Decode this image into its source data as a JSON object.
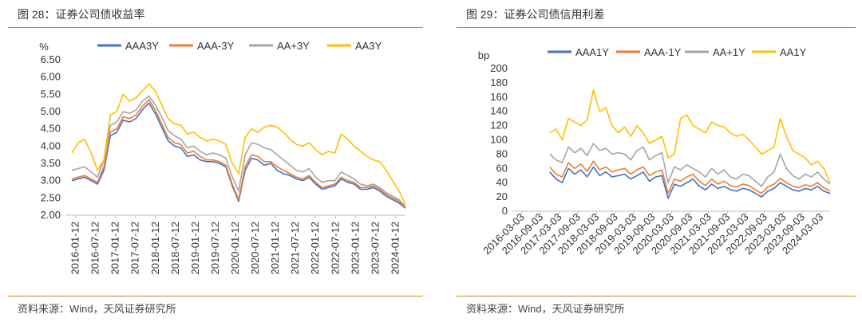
{
  "left": {
    "figure_title": "图 28：证券公司债收益率",
    "source": "资料来源：Wind，天风证券研究所",
    "colors": {
      "rule": "#d9822b"
    }
  },
  "right": {
    "figure_title": "图 29：证券公司债信用利差",
    "source": "资料来源：Wind，天风证券研究所",
    "colors": {
      "rule": "#d9822b"
    }
  },
  "chart_data": [
    {
      "type": "line",
      "title": "图 28：证券公司债收益率",
      "ylabel": "%",
      "ylim": [
        2.0,
        6.5
      ],
      "yticks": [
        2.0,
        2.5,
        3.0,
        3.5,
        4.0,
        4.5,
        5.0,
        5.5,
        6.0,
        6.5
      ],
      "ytick_labels": [
        "2.00",
        "2.50",
        "3.00",
        "3.50",
        "4.00",
        "4.50",
        "5.00",
        "5.50",
        "6.00",
        "6.50"
      ],
      "xtick_labels": [
        "2016-01-12",
        "2016-07-12",
        "2017-01-12",
        "2017-07-12",
        "2018-01-12",
        "2018-07-12",
        "2019-01-12",
        "2019-07-12",
        "2020-01-12",
        "2020-07-12",
        "2021-01-12",
        "2021-07-12",
        "2022-01-12",
        "2022-07-12",
        "2023-01-12",
        "2023-07-12",
        "2024-01-12"
      ],
      "legend_position": "top",
      "x": [
        "2016-01",
        "2016-03",
        "2016-05",
        "2016-07",
        "2016-09",
        "2016-11",
        "2017-01",
        "2017-03",
        "2017-05",
        "2017-07",
        "2017-09",
        "2017-11",
        "2018-01",
        "2018-03",
        "2018-05",
        "2018-07",
        "2018-09",
        "2018-11",
        "2019-01",
        "2019-03",
        "2019-05",
        "2019-07",
        "2019-09",
        "2019-11",
        "2020-01",
        "2020-03",
        "2020-05",
        "2020-07",
        "2020-09",
        "2020-11",
        "2021-01",
        "2021-03",
        "2021-05",
        "2021-07",
        "2021-09",
        "2021-11",
        "2022-01",
        "2022-03",
        "2022-05",
        "2022-07",
        "2022-09",
        "2022-11",
        "2023-01",
        "2023-03",
        "2023-05",
        "2023-07",
        "2023-09",
        "2023-11",
        "2024-01",
        "2024-03",
        "2024-05",
        "2024-07",
        "2024-09"
      ],
      "series": [
        {
          "name": "AAA3Y",
          "color": "#4472c4",
          "values": [
            3.0,
            3.05,
            3.1,
            3.0,
            2.9,
            3.3,
            4.3,
            4.4,
            4.75,
            4.7,
            4.8,
            5.05,
            5.25,
            4.95,
            4.55,
            4.15,
            4.0,
            3.95,
            3.7,
            3.75,
            3.6,
            3.55,
            3.55,
            3.5,
            3.4,
            2.85,
            2.4,
            3.3,
            3.65,
            3.6,
            3.45,
            3.5,
            3.3,
            3.2,
            3.15,
            3.05,
            3.0,
            3.1,
            2.9,
            2.75,
            2.8,
            2.85,
            3.05,
            2.95,
            2.9,
            2.75,
            2.75,
            2.8,
            2.7,
            2.55,
            2.45,
            2.35,
            2.2
          ]
        },
        {
          "name": "AAA-3Y",
          "color": "#ed7d31",
          "values": [
            3.05,
            3.1,
            3.15,
            3.05,
            2.95,
            3.4,
            4.4,
            4.5,
            4.85,
            4.8,
            4.9,
            5.15,
            5.35,
            5.05,
            4.65,
            4.25,
            4.1,
            4.05,
            3.8,
            3.85,
            3.7,
            3.6,
            3.6,
            3.55,
            3.45,
            2.9,
            2.45,
            3.4,
            3.75,
            3.7,
            3.55,
            3.55,
            3.4,
            3.3,
            3.2,
            3.1,
            3.05,
            3.15,
            2.95,
            2.8,
            2.85,
            2.9,
            3.1,
            3.0,
            2.95,
            2.8,
            2.8,
            2.85,
            2.75,
            2.6,
            2.5,
            2.4,
            2.22
          ]
        },
        {
          "name": "AA+3Y",
          "color": "#a5a5a5",
          "values": [
            3.3,
            3.35,
            3.4,
            3.25,
            3.1,
            3.6,
            4.6,
            4.7,
            5.0,
            4.95,
            5.05,
            5.3,
            5.45,
            5.2,
            4.85,
            4.45,
            4.3,
            4.2,
            3.95,
            4.0,
            3.85,
            3.75,
            3.8,
            3.75,
            3.65,
            3.1,
            2.7,
            3.75,
            4.1,
            4.05,
            3.95,
            3.9,
            3.75,
            3.6,
            3.45,
            3.3,
            3.25,
            3.35,
            3.1,
            2.95,
            3.0,
            3.0,
            3.25,
            3.15,
            3.05,
            2.9,
            2.85,
            2.9,
            2.8,
            2.65,
            2.55,
            2.45,
            2.25
          ]
        },
        {
          "name": "AA3Y",
          "color": "#ffc000",
          "values": [
            3.8,
            4.1,
            4.2,
            3.8,
            3.3,
            3.6,
            4.9,
            5.0,
            5.5,
            5.3,
            5.4,
            5.6,
            5.8,
            5.6,
            5.2,
            4.8,
            4.65,
            4.6,
            4.35,
            4.4,
            4.25,
            4.15,
            4.2,
            4.15,
            4.05,
            3.5,
            3.2,
            4.25,
            4.5,
            4.4,
            4.55,
            4.6,
            4.55,
            4.4,
            4.2,
            4.05,
            4.0,
            4.1,
            3.9,
            3.75,
            3.85,
            3.8,
            4.35,
            4.2,
            4.0,
            3.85,
            3.7,
            3.6,
            3.55,
            3.3,
            3.0,
            2.7,
            2.3
          ]
        }
      ]
    },
    {
      "type": "line",
      "title": "图 29：证券公司债信用利差",
      "ylabel": "bp",
      "ylim": [
        0,
        200
      ],
      "yticks": [
        0,
        20,
        40,
        60,
        80,
        100,
        120,
        140,
        160,
        180,
        200
      ],
      "ytick_labels": [
        "0",
        "20",
        "40",
        "60",
        "80",
        "100",
        "120",
        "140",
        "160",
        "180",
        "200"
      ],
      "xtick_labels": [
        "2016-03-03",
        "2016-09-03",
        "2017-03-03",
        "2017-09-03",
        "2018-03-03",
        "2018-09-03",
        "2019-03-03",
        "2019-09-03",
        "2020-03-03",
        "2020-09-03",
        "2021-03-03",
        "2021-09-03",
        "2022-03-03",
        "2022-09-03",
        "2023-03-03",
        "2023-09-03",
        "2024-03-03"
      ],
      "legend_position": "top",
      "x": [
        "2017-01",
        "2017-03",
        "2017-05",
        "2017-07",
        "2017-09",
        "2017-11",
        "2018-01",
        "2018-03",
        "2018-05",
        "2018-07",
        "2018-09",
        "2018-11",
        "2019-01",
        "2019-03",
        "2019-05",
        "2019-07",
        "2019-09",
        "2019-11",
        "2020-01",
        "2020-03",
        "2020-05",
        "2020-07",
        "2020-09",
        "2020-11",
        "2021-01",
        "2021-03",
        "2021-05",
        "2021-07",
        "2021-09",
        "2021-11",
        "2022-01",
        "2022-03",
        "2022-05",
        "2022-07",
        "2022-09",
        "2022-11",
        "2023-01",
        "2023-03",
        "2023-05",
        "2023-07",
        "2023-09",
        "2023-11",
        "2024-01",
        "2024-03",
        "2024-05",
        "2024-07"
      ],
      "series": [
        {
          "name": "AAA1Y",
          "color": "#4472c4",
          "values": [
            55,
            45,
            40,
            60,
            52,
            58,
            48,
            62,
            50,
            55,
            48,
            50,
            52,
            45,
            50,
            55,
            42,
            48,
            50,
            18,
            38,
            35,
            40,
            45,
            35,
            30,
            38,
            32,
            35,
            30,
            28,
            32,
            30,
            25,
            20,
            28,
            32,
            40,
            35,
            30,
            28,
            32,
            30,
            35,
            28,
            25
          ]
        },
        {
          "name": "AAA-1Y",
          "color": "#ed7d31",
          "values": [
            62,
            52,
            48,
            68,
            60,
            66,
            56,
            70,
            58,
            62,
            55,
            58,
            60,
            52,
            58,
            62,
            50,
            55,
            58,
            25,
            45,
            42,
            48,
            52,
            42,
            36,
            45,
            38,
            42,
            36,
            34,
            38,
            36,
            30,
            25,
            34,
            38,
            46,
            40,
            35,
            33,
            37,
            35,
            40,
            33,
            28
          ]
        },
        {
          "name": "AA+1Y",
          "color": "#a5a5a5",
          "values": [
            80,
            72,
            68,
            90,
            82,
            88,
            78,
            95,
            85,
            88,
            80,
            82,
            80,
            72,
            85,
            90,
            72,
            78,
            82,
            40,
            62,
            58,
            65,
            60,
            55,
            48,
            60,
            52,
            58,
            48,
            45,
            52,
            50,
            42,
            35,
            48,
            55,
            80,
            60,
            50,
            45,
            52,
            48,
            55,
            45,
            38
          ]
        },
        {
          "name": "AA1Y",
          "color": "#ffc000",
          "values": [
            110,
            115,
            100,
            130,
            125,
            120,
            128,
            170,
            140,
            145,
            120,
            110,
            118,
            105,
            120,
            110,
            95,
            100,
            105,
            75,
            80,
            130,
            135,
            120,
            115,
            110,
            125,
            120,
            118,
            110,
            105,
            108,
            100,
            90,
            80,
            85,
            90,
            130,
            105,
            85,
            80,
            75,
            65,
            70,
            60,
            40
          ]
        }
      ]
    }
  ]
}
